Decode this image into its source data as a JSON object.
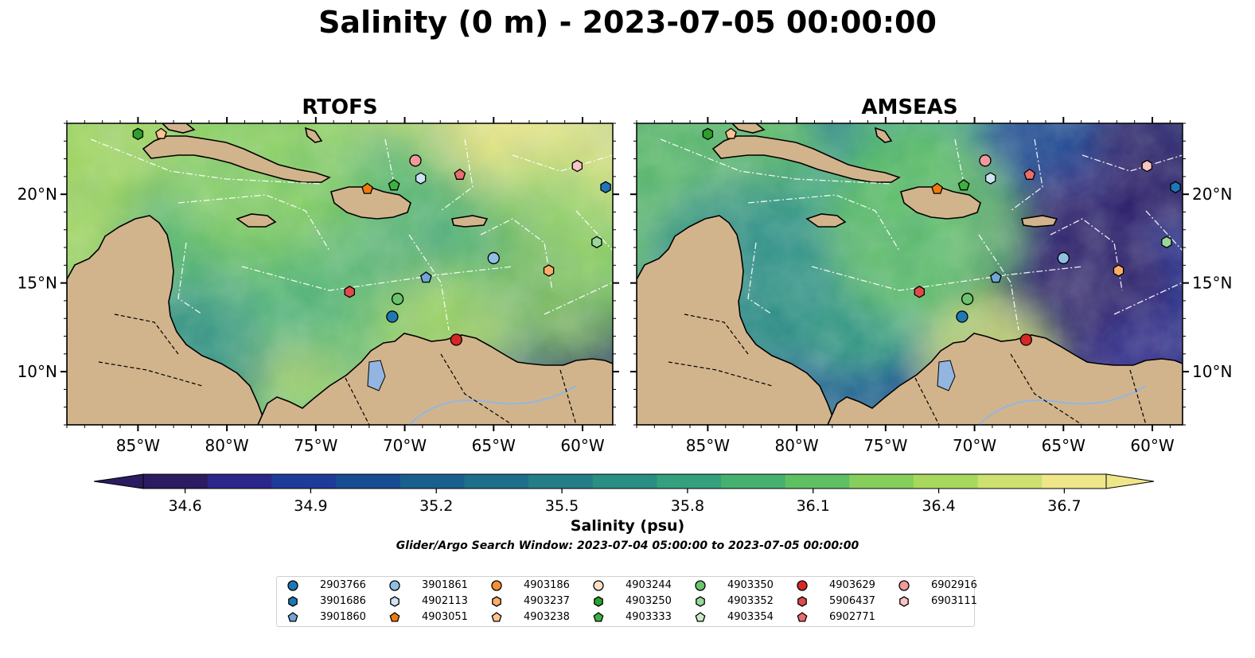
{
  "title": "Salinity (0 m) - 2023-07-05 00:00:00",
  "panels": [
    {
      "title": "RTOFS",
      "model": "rtofs"
    },
    {
      "title": "AMSEAS",
      "model": "amseas"
    }
  ],
  "map": {
    "lon_range": [
      -89,
      -58.3
    ],
    "lat_range": [
      7,
      24
    ],
    "lon_ticks": [
      "85°W",
      "80°W",
      "75°W",
      "70°W",
      "65°W",
      "60°W"
    ],
    "lon_tick_values": [
      -85,
      -80,
      -75,
      -70,
      -65,
      -60
    ],
    "lat_ticks": [
      "10°N",
      "15°N",
      "20°N"
    ],
    "lat_tick_values": [
      10,
      15,
      20
    ],
    "land_color": "#d2b48c",
    "lake_color": "#93b6e0"
  },
  "colorbar": {
    "label": "Salinity (psu)",
    "vmin": 34.5,
    "vmax": 36.8,
    "extend": "both",
    "ticks": [
      "34.6",
      "34.9",
      "35.2",
      "35.5",
      "35.8",
      "36.1",
      "36.4",
      "36.7"
    ],
    "tick_values": [
      34.6,
      34.9,
      35.2,
      35.5,
      35.8,
      36.1,
      36.4,
      36.7
    ],
    "colors": [
      "#2b1b61",
      "#2a268b",
      "#1e3b99",
      "#184d93",
      "#1a608e",
      "#1e6f8b",
      "#237e88",
      "#2a8e84",
      "#34a07d",
      "#45b06f",
      "#5fc063",
      "#86cf5c",
      "#a9d85e",
      "#cde072",
      "#efe68a"
    ]
  },
  "search_window": "Glider/Argo Search Window: 2023-07-04 05:00:00 to 2023-07-05 00:00:00",
  "legend": [
    {
      "label": "2903766",
      "marker": "circle",
      "color": "#1f77b4"
    },
    {
      "label": "3901686",
      "marker": "hexagon",
      "color": "#1f77b4"
    },
    {
      "label": "3901860",
      "marker": "pentagon",
      "color": "#6fa6d6"
    },
    {
      "label": "3901861",
      "marker": "circle",
      "color": "#8fc0e4"
    },
    {
      "label": "4902113",
      "marker": "hexagon",
      "color": "#cfe3f5"
    },
    {
      "label": "4903051",
      "marker": "pentagon",
      "color": "#ef7a0a"
    },
    {
      "label": "4903186",
      "marker": "circle",
      "color": "#f58f32"
    },
    {
      "label": "4903237",
      "marker": "hexagon",
      "color": "#fbae67"
    },
    {
      "label": "4903238",
      "marker": "pentagon",
      "color": "#fdc492"
    },
    {
      "label": "4903244",
      "marker": "circle",
      "color": "#fde0c5"
    },
    {
      "label": "4903250",
      "marker": "hexagon",
      "color": "#2ca02c"
    },
    {
      "label": "4903333",
      "marker": "pentagon",
      "color": "#3fb03f"
    },
    {
      "label": "4903350",
      "marker": "circle",
      "color": "#6cc36c"
    },
    {
      "label": "4903352",
      "marker": "hexagon",
      "color": "#9ad89a"
    },
    {
      "label": "4903354",
      "marker": "pentagon",
      "color": "#c9ecc4"
    },
    {
      "label": "4903629",
      "marker": "circle",
      "color": "#d62728"
    },
    {
      "label": "5906437",
      "marker": "hexagon",
      "color": "#e04a4a"
    },
    {
      "label": "6902771",
      "marker": "pentagon",
      "color": "#ec6d6d"
    },
    {
      "label": "6902916",
      "marker": "circle",
      "color": "#f29a9a"
    },
    {
      "label": "6903111",
      "marker": "hexagon",
      "color": "#f9c4c4"
    }
  ],
  "platform_positions": [
    {
      "id": "4903250",
      "lon": -85.0,
      "lat": 23.4
    },
    {
      "id": "4903238",
      "lon": -83.7,
      "lat": 23.4
    },
    {
      "id": "6902916",
      "lon": -69.4,
      "lat": 21.9
    },
    {
      "id": "6903111",
      "lon": -60.3,
      "lat": 21.6
    },
    {
      "id": "6902771",
      "lon": -66.9,
      "lat": 21.1
    },
    {
      "id": "4902113",
      "lon": -69.1,
      "lat": 20.9
    },
    {
      "id": "4903333",
      "lon": -70.6,
      "lat": 20.5
    },
    {
      "id": "4903051",
      "lon": -72.1,
      "lat": 20.3
    },
    {
      "id": "3901686",
      "lon": -58.7,
      "lat": 20.4
    },
    {
      "id": "4903352",
      "lon": -59.2,
      "lat": 17.3
    },
    {
      "id": "3901861",
      "lon": -65.0,
      "lat": 16.4
    },
    {
      "id": "4903237",
      "lon": -61.9,
      "lat": 15.7
    },
    {
      "id": "3901860",
      "lon": -68.8,
      "lat": 15.3
    },
    {
      "id": "5906437",
      "lon": -73.1,
      "lat": 14.5
    },
    {
      "id": "4903350",
      "lon": -70.4,
      "lat": 14.1
    },
    {
      "id": "2903766",
      "lon": -70.7,
      "lat": 13.1
    },
    {
      "id": "4903629",
      "lon": -67.1,
      "lat": 11.8
    }
  ]
}
